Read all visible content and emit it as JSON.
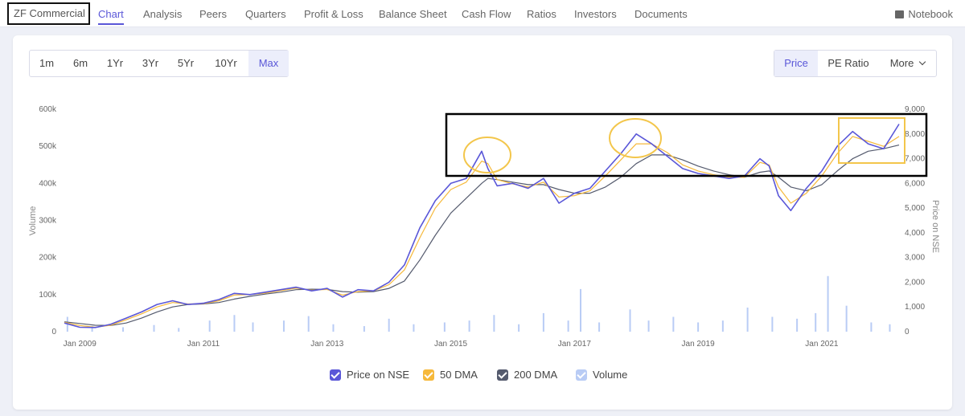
{
  "nav": {
    "company": "ZF Commercial",
    "tabs": [
      {
        "label": "Chart",
        "active": true
      },
      {
        "label": "Analysis",
        "active": false
      },
      {
        "label": "Peers",
        "active": false
      },
      {
        "label": "Quarters",
        "active": false
      },
      {
        "label": "Profit & Loss",
        "active": false
      },
      {
        "label": "Balance Sheet",
        "active": false
      },
      {
        "label": "Cash Flow",
        "active": false
      },
      {
        "label": "Ratios",
        "active": false
      },
      {
        "label": "Investors",
        "active": false
      },
      {
        "label": "Documents",
        "active": false
      }
    ],
    "notebook": "Notebook",
    "accent": "#5a57d8"
  },
  "ranges": [
    {
      "label": "1m",
      "active": false
    },
    {
      "label": "6m",
      "active": false
    },
    {
      "label": "1Yr",
      "active": false
    },
    {
      "label": "3Yr",
      "active": false
    },
    {
      "label": "5Yr",
      "active": false
    },
    {
      "label": "10Yr",
      "active": false
    },
    {
      "label": "Max",
      "active": true
    }
  ],
  "modes": [
    {
      "label": "Price",
      "active": true
    },
    {
      "label": "PE Ratio",
      "active": false
    },
    {
      "label": "More",
      "active": false
    }
  ],
  "chart_data": {
    "type": "line",
    "ylabel_left": "Volume",
    "ylabel_right": "Price on NSE",
    "x_ticks": [
      "Jan 2009",
      "Jan 2011",
      "Jan 2013",
      "Jan 2015",
      "Jan 2017",
      "Jan 2019",
      "Jan 2021"
    ],
    "xlim": [
      2008.75,
      2022.25
    ],
    "y_left_ticks": [
      "0",
      "100k",
      "200k",
      "300k",
      "400k",
      "500k",
      "600k"
    ],
    "y_left_range": [
      0,
      600000
    ],
    "y_right_ticks": [
      "0",
      "1,000",
      "2,000",
      "3,000",
      "4,000",
      "5,000",
      "6,000",
      "7,000",
      "8,000",
      "9,000"
    ],
    "y_right_range": [
      0,
      9000
    ],
    "series": [
      {
        "name": "Price on NSE",
        "color": "#5a57d8",
        "x": [
          2008.75,
          2009.0,
          2009.25,
          2009.5,
          2009.75,
          2010.0,
          2010.25,
          2010.5,
          2010.75,
          2011.0,
          2011.25,
          2011.5,
          2011.75,
          2012.0,
          2012.25,
          2012.5,
          2012.75,
          2013.0,
          2013.25,
          2013.5,
          2013.75,
          2014.0,
          2014.25,
          2014.5,
          2014.75,
          2015.0,
          2015.25,
          2015.5,
          2015.6,
          2015.75,
          2016.0,
          2016.25,
          2016.5,
          2016.75,
          2017.0,
          2017.25,
          2017.5,
          2017.75,
          2018.0,
          2018.25,
          2018.5,
          2018.75,
          2019.0,
          2019.25,
          2019.5,
          2019.75,
          2020.0,
          2020.15,
          2020.3,
          2020.5,
          2020.75,
          2021.0,
          2021.25,
          2021.5,
          2021.75,
          2022.0,
          2022.25
        ],
        "values": [
          350,
          180,
          170,
          300,
          550,
          800,
          1100,
          1250,
          1100,
          1150,
          1300,
          1550,
          1500,
          1600,
          1700,
          1800,
          1650,
          1750,
          1400,
          1700,
          1650,
          2000,
          2700,
          4200,
          5300,
          6000,
          6200,
          7300,
          6600,
          5900,
          6000,
          5800,
          6200,
          5200,
          5600,
          5800,
          6500,
          7200,
          8000,
          7600,
          7100,
          6600,
          6400,
          6300,
          6200,
          6300,
          7000,
          6700,
          5500,
          4900,
          5800,
          6500,
          7500,
          8100,
          7600,
          7400,
          8400
        ]
      },
      {
        "name": "50 DMA",
        "color": "#f6b93b",
        "x": [
          2008.75,
          2009.0,
          2009.25,
          2009.5,
          2009.75,
          2010.0,
          2010.25,
          2010.5,
          2010.75,
          2011.0,
          2011.25,
          2011.5,
          2011.75,
          2012.0,
          2012.25,
          2012.5,
          2012.75,
          2013.0,
          2013.25,
          2013.5,
          2013.75,
          2014.0,
          2014.25,
          2014.5,
          2014.75,
          2015.0,
          2015.25,
          2015.5,
          2015.6,
          2015.75,
          2016.0,
          2016.25,
          2016.5,
          2016.75,
          2017.0,
          2017.25,
          2017.5,
          2017.75,
          2018.0,
          2018.25,
          2018.5,
          2018.75,
          2019.0,
          2019.25,
          2019.5,
          2019.75,
          2020.0,
          2020.15,
          2020.3,
          2020.5,
          2020.75,
          2021.0,
          2021.25,
          2021.5,
          2021.75,
          2022.0,
          2022.25
        ],
        "values": [
          380,
          250,
          180,
          260,
          480,
          720,
          1000,
          1180,
          1120,
          1130,
          1250,
          1480,
          1500,
          1560,
          1660,
          1760,
          1680,
          1710,
          1480,
          1620,
          1650,
          1900,
          2500,
          3800,
          5000,
          5750,
          6050,
          6900,
          6800,
          6150,
          5980,
          5850,
          6050,
          5450,
          5500,
          5700,
          6300,
          6950,
          7600,
          7600,
          7250,
          6750,
          6500,
          6350,
          6250,
          6250,
          6850,
          6750,
          5850,
          5200,
          5600,
          6300,
          7200,
          7900,
          7700,
          7500,
          7900
        ]
      },
      {
        "name": "200 DMA",
        "color": "#555b6e",
        "x": [
          2008.75,
          2009.0,
          2009.25,
          2009.5,
          2009.75,
          2010.0,
          2010.25,
          2010.5,
          2010.75,
          2011.0,
          2011.25,
          2011.5,
          2011.75,
          2012.0,
          2012.25,
          2012.5,
          2012.75,
          2013.0,
          2013.25,
          2013.5,
          2013.75,
          2014.0,
          2014.25,
          2014.5,
          2014.75,
          2015.0,
          2015.25,
          2015.5,
          2015.6,
          2015.75,
          2016.0,
          2016.25,
          2016.5,
          2016.75,
          2017.0,
          2017.25,
          2017.5,
          2017.75,
          2018.0,
          2018.25,
          2018.5,
          2018.75,
          2019.0,
          2019.25,
          2019.5,
          2019.75,
          2020.0,
          2020.15,
          2020.3,
          2020.5,
          2020.75,
          2021.0,
          2021.25,
          2021.5,
          2021.75,
          2022.0,
          2022.25
        ],
        "values": [
          400,
          330,
          260,
          250,
          350,
          550,
          800,
          1000,
          1100,
          1120,
          1180,
          1320,
          1430,
          1520,
          1600,
          1700,
          1720,
          1710,
          1620,
          1600,
          1620,
          1750,
          2050,
          2900,
          3900,
          4800,
          5400,
          6000,
          6200,
          6150,
          6050,
          5950,
          5950,
          5750,
          5600,
          5600,
          5850,
          6250,
          6800,
          7150,
          7150,
          6950,
          6700,
          6500,
          6350,
          6250,
          6450,
          6500,
          6250,
          5850,
          5700,
          5950,
          6500,
          7000,
          7300,
          7400,
          7550
        ]
      },
      {
        "name": "Volume",
        "color": "#b9ccf5",
        "x": [
          2008.8,
          2009.2,
          2009.7,
          2010.2,
          2010.6,
          2011.1,
          2011.5,
          2011.8,
          2012.3,
          2012.7,
          2013.1,
          2013.6,
          2014.0,
          2014.4,
          2014.9,
          2015.3,
          2015.7,
          2016.1,
          2016.5,
          2016.9,
          2017.1,
          2017.4,
          2017.9,
          2018.2,
          2018.6,
          2019.0,
          2019.4,
          2019.8,
          2020.2,
          2020.6,
          2020.9,
          2021.1,
          2021.4,
          2021.8,
          2022.1
        ],
        "values": [
          40000,
          15000,
          12000,
          18000,
          10000,
          30000,
          45000,
          25000,
          30000,
          42000,
          20000,
          15000,
          35000,
          20000,
          25000,
          30000,
          45000,
          20000,
          50000,
          30000,
          115000,
          25000,
          60000,
          30000,
          40000,
          25000,
          30000,
          65000,
          40000,
          35000,
          50000,
          150000,
          70000,
          25000,
          20000
        ]
      }
    ],
    "legend": [
      "Price on NSE",
      "50 DMA",
      "200 DMA",
      "Volume"
    ],
    "legend_placement": "bottom-center",
    "grid": false
  }
}
